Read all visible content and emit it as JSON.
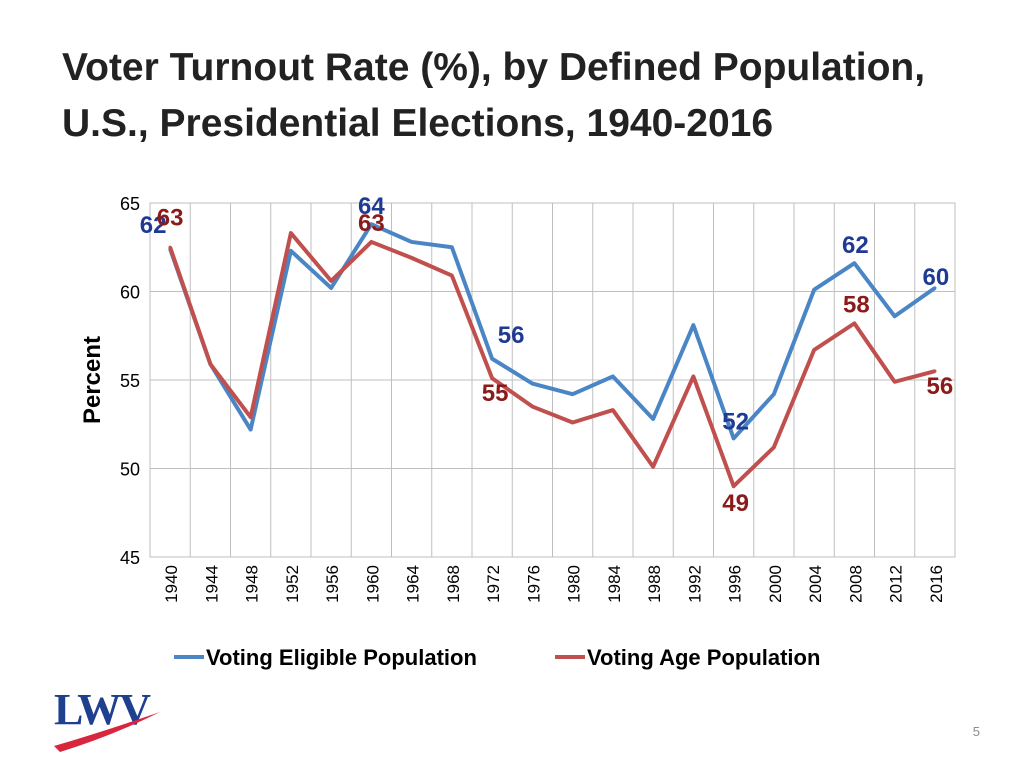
{
  "title": {
    "line1": "Voter Turnout Rate (%), by Defined Population,",
    "line2": "U.S., Presidential Elections, 1940-2016"
  },
  "page_number": "5",
  "logo": {
    "text": "LWV",
    "colors": {
      "letters": "#1f3f8f",
      "swoosh": "#d7263d"
    }
  },
  "colors": {
    "series_blue": "#4a86c5",
    "series_red": "#c0504d",
    "label_blue": "#1f3a93",
    "label_red": "#8b1a1a",
    "grid": "#bfbfbf"
  },
  "chart_data": {
    "type": "line",
    "title": "Voter Turnout Rate (%), by Defined Population, U.S., Presidential Elections, 1940-2016",
    "xlabel": "",
    "ylabel": "Percent",
    "ylim": [
      45,
      65
    ],
    "yticks": [
      45,
      50,
      55,
      60,
      65
    ],
    "grid": true,
    "legend": "bottom",
    "categories": [
      "1940",
      "1944",
      "1948",
      "1952",
      "1956",
      "1960",
      "1964",
      "1968",
      "1972",
      "1976",
      "1980",
      "1984",
      "1988",
      "1992",
      "1996",
      "2000",
      "2004",
      "2008",
      "2012",
      "2016"
    ],
    "series": [
      {
        "name": "Voting Eligible Population",
        "color": "#4a86c5",
        "values": [
          62.4,
          55.9,
          52.2,
          62.3,
          60.2,
          63.8,
          62.8,
          62.5,
          56.2,
          54.8,
          54.2,
          55.2,
          52.8,
          58.1,
          51.7,
          54.2,
          60.1,
          61.6,
          58.6,
          60.2
        ]
      },
      {
        "name": "Voting Age Population",
        "color": "#c0504d",
        "values": [
          62.5,
          55.9,
          52.9,
          63.3,
          60.6,
          62.8,
          61.9,
          60.9,
          55.1,
          53.5,
          52.6,
          53.3,
          50.1,
          55.2,
          49.0,
          51.2,
          56.7,
          58.2,
          54.9,
          55.5
        ]
      }
    ],
    "annotations": [
      {
        "text": "62",
        "series": 0,
        "category": "1940",
        "color": "#1f3a93"
      },
      {
        "text": "64",
        "series": 0,
        "category": "1960",
        "color": "#1f3a93"
      },
      {
        "text": "56",
        "series": 0,
        "category": "1972",
        "color": "#1f3a93"
      },
      {
        "text": "52",
        "series": 0,
        "category": "1996",
        "color": "#1f3a93"
      },
      {
        "text": "62",
        "series": 0,
        "category": "2008",
        "color": "#1f3a93"
      },
      {
        "text": "60",
        "series": 0,
        "category": "2016",
        "color": "#1f3a93"
      },
      {
        "text": "63",
        "series": 1,
        "category": "1940",
        "color": "#8b1a1a"
      },
      {
        "text": "63",
        "series": 1,
        "category": "1960",
        "color": "#8b1a1a"
      },
      {
        "text": "55",
        "series": 1,
        "category": "1972",
        "color": "#8b1a1a"
      },
      {
        "text": "49",
        "series": 1,
        "category": "1996",
        "color": "#8b1a1a"
      },
      {
        "text": "58",
        "series": 1,
        "category": "2008",
        "color": "#8b1a1a"
      },
      {
        "text": "56",
        "series": 1,
        "category": "2016",
        "color": "#8b1a1a"
      }
    ]
  }
}
